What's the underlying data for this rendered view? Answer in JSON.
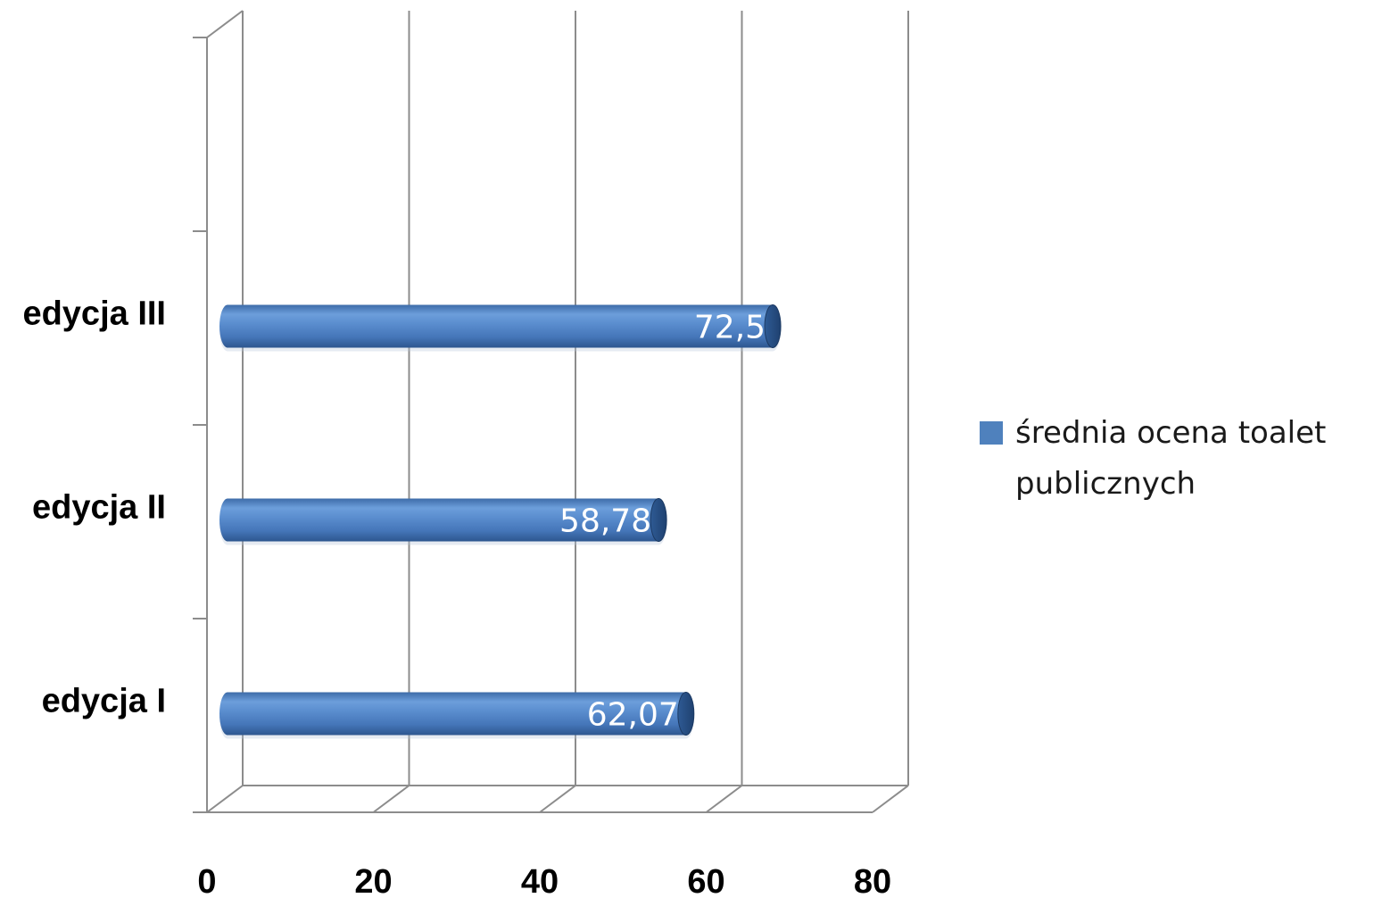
{
  "chart_data": {
    "type": "bar",
    "orientation": "horizontal",
    "categories": [
      "edycja I",
      "edycja II",
      "edycja III"
    ],
    "series": [
      {
        "name": "średnia ocena toalet publicznych",
        "values": [
          62.07,
          58.78,
          72.5
        ],
        "color": "#4F81BD"
      }
    ],
    "data_labels": [
      "62,07",
      "58,78",
      "72,5"
    ],
    "x_ticks": [
      "0",
      "20",
      "40",
      "60",
      "80"
    ],
    "xlim": [
      0,
      80
    ],
    "category_slots": 4,
    "grid": true,
    "legend_position": "right",
    "legend_lines": [
      "średnia ocena toalet",
      "publicznych"
    ],
    "style": "3d-cylinder"
  }
}
